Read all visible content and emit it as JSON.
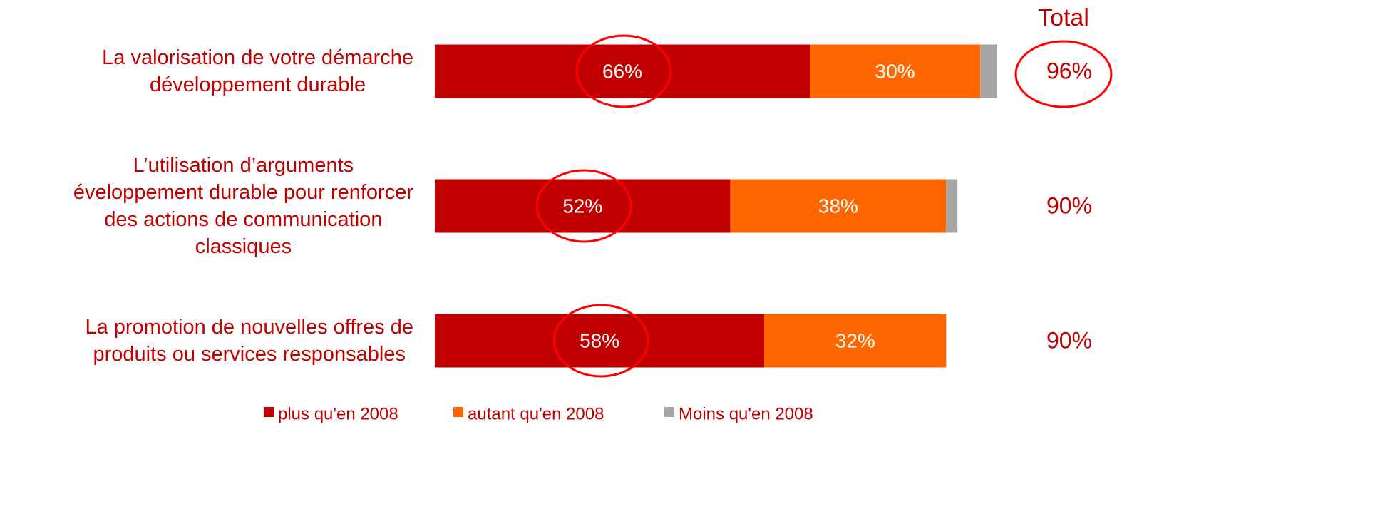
{
  "chart_data": {
    "type": "stacked-bar-horizontal",
    "categories": [
      "La valorisation de votre démarche\ndéveloppement durable",
      "L’utilisation d’arguments\néveloppement durable pour renforcer\ndes actions de communication\nclassiques",
      "La promotion de nouvelles offres de\nproduits ou services responsables"
    ],
    "xlim": [
      0,
      100
    ],
    "series": [
      {
        "name": "plus qu'en 2008",
        "color": "#c00000",
        "values": [
          66,
          52,
          58
        ],
        "value_labels": [
          "66%",
          "52%",
          "58%"
        ],
        "highlight": true
      },
      {
        "name": "autant qu'en 2008",
        "color": "#ff6600",
        "values": [
          30,
          38,
          32
        ],
        "value_labels": [
          "30%",
          "38%",
          "32%"
        ]
      },
      {
        "name": "Moins qu'en 2008",
        "color": "#a6a6a6",
        "values": [
          3,
          2,
          null
        ]
      }
    ],
    "totals": {
      "title": "Total",
      "values": [
        96,
        90,
        90
      ],
      "value_labels": [
        "96%",
        "90%",
        "90%"
      ],
      "highlight": [
        true,
        false,
        false
      ]
    },
    "legend": "bottom"
  }
}
